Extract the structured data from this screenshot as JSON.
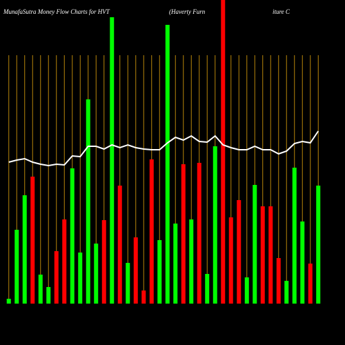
{
  "chart_data": {
    "type": "bar",
    "title": "MunafaSutra  Money  Flow  Charts  for  HVT",
    "subtitle": [
      "(Haverty  Furn",
      "iture    C"
    ],
    "categories": [
      null,
      null,
      null,
      null,
      null,
      null,
      null,
      null,
      null,
      null,
      null,
      null,
      null,
      null,
      null,
      null,
      null,
      null,
      null,
      null,
      null,
      null,
      null,
      null,
      null,
      null,
      null,
      null,
      null,
      null,
      null,
      null,
      null,
      null,
      null,
      null,
      null,
      null,
      null,
      null
    ],
    "ylim": [
      0,
      440
    ],
    "guide_color": "#b8860b",
    "series": [
      {
        "type": "bar",
        "values": [
          7,
          107,
          157,
          184,
          42,
          24,
          76,
          122,
          196,
          74,
          296,
          87,
          121,
          415,
          171,
          59,
          96,
          19,
          209,
          92,
          404,
          116,
          202,
          122,
          204,
          43,
          228,
          440,
          125,
          150,
          38,
          172,
          141,
          141,
          66,
          33,
          197,
          119,
          58,
          171
        ],
        "colors": [
          "#00ff00",
          "#00ff00",
          "#00ff00",
          "#ff0000",
          "#00ff00",
          "#00ff00",
          "#ff0000",
          "#ff0000",
          "#00ff00",
          "#00ff00",
          "#00ff00",
          "#00ff00",
          "#ff0000",
          "#00ff00",
          "#ff0000",
          "#00ff00",
          "#ff0000",
          "#ff0000",
          "#ff0000",
          "#00ff00",
          "#00ff00",
          "#00ff00",
          "#ff0000",
          "#00ff00",
          "#ff0000",
          "#00ff00",
          "#00ff00",
          "#ff0000",
          "#ff0000",
          "#ff0000",
          "#00ff00",
          "#00ff00",
          "#ff0000",
          "#ff0000",
          "#ff0000",
          "#00ff00",
          "#00ff00",
          "#00ff00",
          "#ff0000",
          "#00ff00"
        ]
      },
      {
        "type": "line",
        "color": "#ffffff",
        "values": [
          205,
          208,
          210,
          205,
          202,
          200,
          202,
          201,
          214,
          213,
          228,
          228,
          224,
          230,
          226,
          230,
          226,
          224,
          223,
          223,
          233,
          241,
          237,
          243,
          235,
          234,
          243,
          230,
          226,
          223,
          223,
          228,
          223,
          223,
          217,
          221,
          232,
          235,
          233,
          250
        ]
      }
    ]
  }
}
